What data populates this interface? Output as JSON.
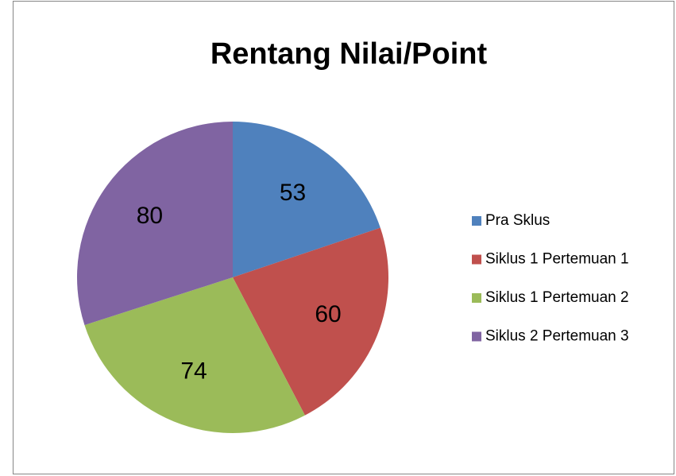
{
  "chart_data": {
    "type": "pie",
    "title": "Rentang Nilai/Point",
    "categories": [
      "Pra Sklus",
      "Siklus 1 Pertemuan 1",
      "Siklus 1 Pertemuan 2",
      "Siklus 2 Pertemuan 3"
    ],
    "values": [
      53,
      60,
      74,
      80
    ],
    "colors": [
      "#4f81bd",
      "#c0504d",
      "#9bbb59",
      "#8064a2"
    ],
    "legend": "right"
  }
}
